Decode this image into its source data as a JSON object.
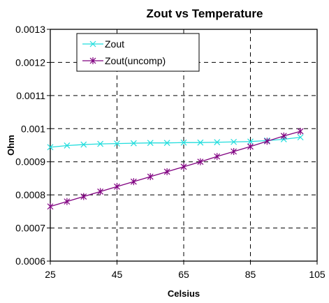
{
  "chart_data": {
    "type": "line",
    "title": "Zout vs Temperature",
    "xlabel": "Celsius",
    "ylabel": "Ohm",
    "xlim": [
      25,
      105
    ],
    "ylim": [
      0.0006,
      0.0013
    ],
    "xticks": [
      25,
      45,
      65,
      85,
      105
    ],
    "yticks": [
      "0.0006",
      "0.0007",
      "0.0008",
      "0.0009",
      "0.001",
      "0.0011",
      "0.0012",
      "0.0013"
    ],
    "grid": true,
    "legend_position": "top-left",
    "series": [
      {
        "name": "Zout",
        "color": "#22dddd",
        "marker": "x",
        "x": [
          25,
          30,
          35,
          40,
          45,
          50,
          55,
          60,
          65,
          70,
          75,
          80,
          85,
          90,
          95,
          100
        ],
        "y": [
          0.000944,
          0.000949,
          0.000952,
          0.000954,
          0.000955,
          0.000956,
          0.000957,
          0.000957,
          0.000958,
          0.000958,
          0.000959,
          0.00096,
          0.000961,
          0.000964,
          0.000968,
          0.000974
        ]
      },
      {
        "name": "Zout(uncomp)",
        "color": "#800080",
        "marker": "asterisk",
        "x": [
          25,
          30,
          35,
          40,
          45,
          50,
          55,
          60,
          65,
          70,
          75,
          80,
          85,
          90,
          95,
          100
        ],
        "y": [
          0.000765,
          0.00078,
          0.000795,
          0.00081,
          0.000825,
          0.00084,
          0.000855,
          0.00087,
          0.000885,
          0.0009,
          0.000916,
          0.000931,
          0.000946,
          0.000962,
          0.000978,
          0.000992
        ]
      }
    ]
  }
}
